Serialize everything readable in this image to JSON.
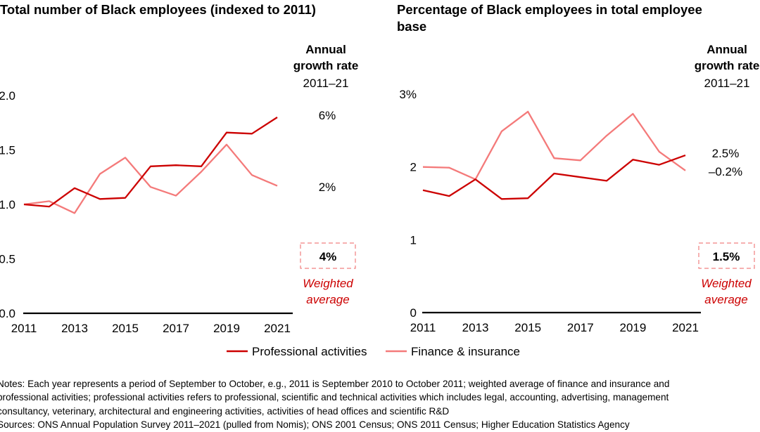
{
  "colors": {
    "professional": "#cc0000",
    "finance": "#f47a7a",
    "axis": "#000000",
    "weighted_box": "#f08080",
    "weighted_label": "#cc0000"
  },
  "legend": [
    {
      "label": "Professional activities",
      "series": "professional"
    },
    {
      "label": "Finance & insurance",
      "series": "finance"
    }
  ],
  "chart_data": [
    {
      "type": "line",
      "title": "Total number of Black employees (indexed to 2011)",
      "x": [
        2011,
        2012,
        2013,
        2014,
        2015,
        2016,
        2017,
        2018,
        2019,
        2020,
        2021
      ],
      "x_tick_labels": [
        "2011",
        "2013",
        "2015",
        "2017",
        "2019",
        "2021"
      ],
      "y_tick_labels": [
        "0.0",
        "0.5",
        "1.0",
        "1.5",
        "2.0"
      ],
      "ylim": [
        0,
        2.0
      ],
      "grid": false,
      "series": [
        {
          "name": "Professional activities",
          "key": "professional",
          "values": [
            1.0,
            0.98,
            1.15,
            1.05,
            1.06,
            1.35,
            1.36,
            1.35,
            1.66,
            1.65,
            1.8
          ],
          "growth_rate": "6%"
        },
        {
          "name": "Finance & insurance",
          "key": "finance",
          "values": [
            1.0,
            1.03,
            0.92,
            1.28,
            1.43,
            1.16,
            1.08,
            1.3,
            1.55,
            1.27,
            1.17
          ],
          "growth_rate": "2%"
        }
      ],
      "growth_header": [
        "Annual",
        "growth rate",
        "2011–21"
      ],
      "weighted_average": {
        "value": "4%",
        "label": [
          "Weighted",
          "average"
        ]
      }
    },
    {
      "type": "line",
      "title": "Percentage of Black employees in total employee base",
      "title_lines": [
        "Percentage of Black employees in total employee",
        "base"
      ],
      "x": [
        2011,
        2012,
        2013,
        2014,
        2015,
        2016,
        2017,
        2018,
        2019,
        2020,
        2021
      ],
      "x_tick_labels": [
        "2011",
        "2013",
        "2015",
        "2017",
        "2019",
        "2021"
      ],
      "y_tick_labels": [
        "0",
        "1",
        "2",
        "3%"
      ],
      "ylim": [
        0,
        3
      ],
      "grid": false,
      "series": [
        {
          "name": "Professional activities",
          "key": "professional",
          "values": [
            1.68,
            1.6,
            1.83,
            1.56,
            1.57,
            1.91,
            1.86,
            1.81,
            2.1,
            2.03,
            2.16
          ],
          "growth_rate": "2.5%"
        },
        {
          "name": "Finance & insurance",
          "key": "finance",
          "values": [
            2.0,
            1.99,
            1.83,
            2.49,
            2.76,
            2.12,
            2.09,
            2.43,
            2.73,
            2.21,
            1.95
          ],
          "growth_rate": "–0.2%"
        }
      ],
      "growth_header": [
        "Annual",
        "growth rate",
        "2011–21"
      ],
      "weighted_average": {
        "value": "1.5%",
        "label": [
          "Weighted",
          "average"
        ]
      }
    }
  ],
  "notes": [
    "Notes: Each year represents a period of September to October, e.g., 2011 is September 2010 to October 2011; weighted average of finance and insurance and",
    "professional activities; professional activities refers to professional, scientific and technical activities which includes legal, accounting, advertising, management",
    "consultancy, veterinary, architectural and engineering activities, activities of head offices and scientific R&D",
    "Sources: ONS Annual Population Survey 2011–2021 (pulled from Nomis); ONS 2001 Census; ONS 2011 Census; Higher Education Statistics Agency"
  ]
}
